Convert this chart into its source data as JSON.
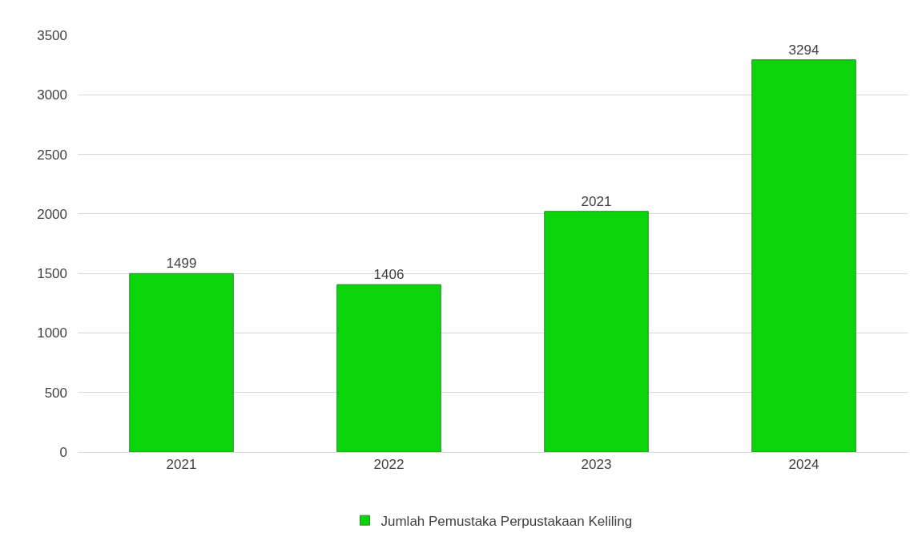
{
  "chart_data": {
    "type": "bar",
    "categories": [
      "2021",
      "2022",
      "2023",
      "2024"
    ],
    "series": [
      {
        "name": "Jumlah Pemustaka Perpustakaan Keliling",
        "color": "#0ad40a",
        "values": [
          1499,
          1406,
          2021,
          3294
        ]
      }
    ],
    "ylim": [
      0,
      3500
    ],
    "yticks": [
      0,
      500,
      1000,
      1500,
      2000,
      2500,
      3000,
      3500
    ],
    "grid": "y",
    "legend": "bottom",
    "data_labels": true
  }
}
